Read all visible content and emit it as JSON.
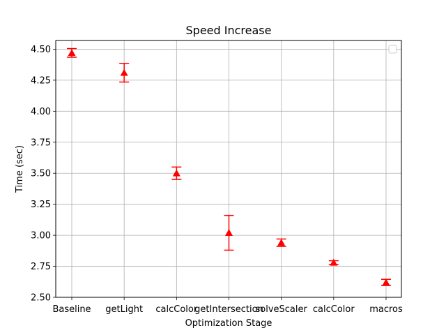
{
  "chart_data": {
    "type": "scatter",
    "title": "Speed Increase",
    "xlabel": "Optimization Stage",
    "ylabel": "Time (sec)",
    "categories": [
      "Baseline",
      "getLight",
      "calcColor",
      "getIntersection",
      "solveScaler",
      "calcColor",
      "macros"
    ],
    "series": [
      {
        "values": [
          4.47,
          4.31,
          3.5,
          3.02,
          2.94,
          2.78,
          2.62
        ],
        "errors": [
          0.035,
          0.075,
          0.05,
          0.14,
          0.03,
          0.015,
          0.025
        ],
        "color": "#ff0000",
        "marker": "triangle-up"
      }
    ],
    "ylim": [
      2.5,
      4.57
    ],
    "yticks": [
      "2.50",
      "2.75",
      "3.00",
      "3.25",
      "3.50",
      "3.75",
      "4.00",
      "4.25",
      "4.50"
    ],
    "grid": true,
    "legend": "top-right"
  }
}
